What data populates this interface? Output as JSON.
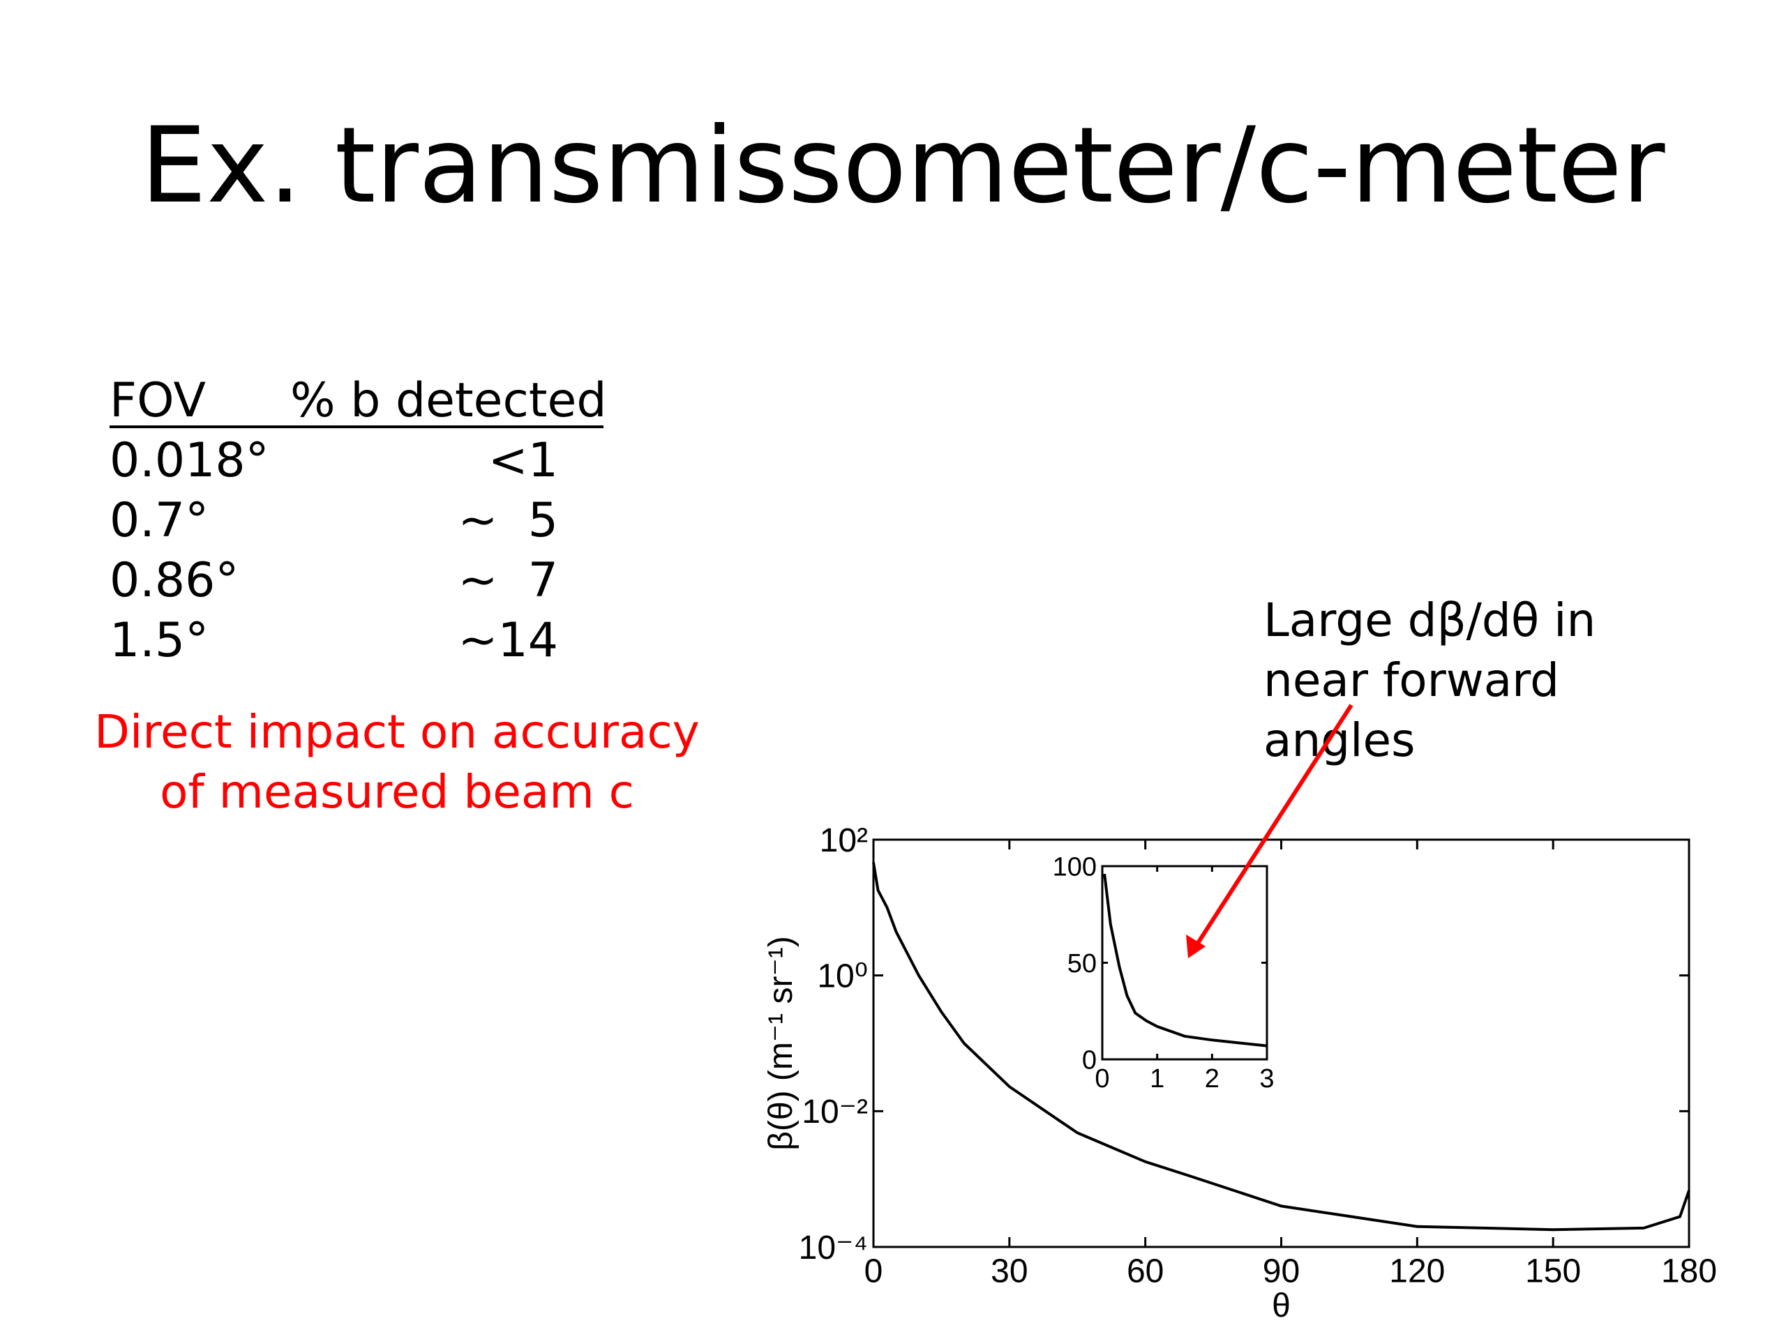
{
  "title": "Ex. transmissometer/c-meter",
  "table": {
    "header": [
      "FOV",
      "% b detected"
    ],
    "rows": [
      [
        "0.018°",
        "<1"
      ],
      [
        "0.7°",
        "~  5"
      ],
      [
        "0.86°",
        "~  7"
      ],
      [
        "1.5°",
        "~14"
      ]
    ]
  },
  "note": [
    "Direct impact on accuracy",
    "of measured beam c"
  ],
  "annotation": [
    "Large dβ/dθ in",
    "near forward",
    "angles"
  ],
  "chart_data": [
    {
      "type": "line",
      "color": "#000000",
      "yscale": "log",
      "xlabel": "θ",
      "ylabel": "β(θ) (m⁻¹ sr⁻¹)",
      "x": [
        0,
        1,
        3,
        5,
        10,
        15,
        20,
        30,
        45,
        60,
        70,
        90,
        120,
        150,
        170,
        178,
        180
      ],
      "values": [
        46,
        18,
        10,
        4.4,
        1,
        0.29,
        0.1,
        0.023,
        0.0048,
        0.0018,
        0.0011,
        0.0004,
        0.0002,
        0.00018,
        0.00019,
        0.00028,
        0.00068
      ],
      "xlim": [
        0,
        180
      ],
      "xticks": [
        0,
        30,
        60,
        90,
        120,
        150,
        180
      ],
      "ylim": [
        0.0001,
        100
      ],
      "yticks": [
        {
          "value": 100,
          "label": "10²"
        },
        {
          "value": 1,
          "label": "10⁰"
        },
        {
          "value": 0.01,
          "label": "10⁻²"
        },
        {
          "value": 0.0001,
          "label": "10⁻⁴"
        }
      ]
    },
    {
      "type": "line",
      "color": "#000000",
      "x": [
        0.04,
        0.15,
        0.31,
        0.45,
        0.6,
        0.8,
        1,
        1.5,
        2,
        2.5,
        3
      ],
      "values": [
        96,
        70,
        48,
        33,
        24,
        20,
        17,
        12,
        10,
        8.5,
        7
      ],
      "xlim": [
        0,
        3
      ],
      "xticks": [
        0,
        1,
        2,
        3
      ],
      "ylim": [
        0,
        100
      ],
      "yticks": [
        0,
        50,
        100
      ]
    }
  ]
}
